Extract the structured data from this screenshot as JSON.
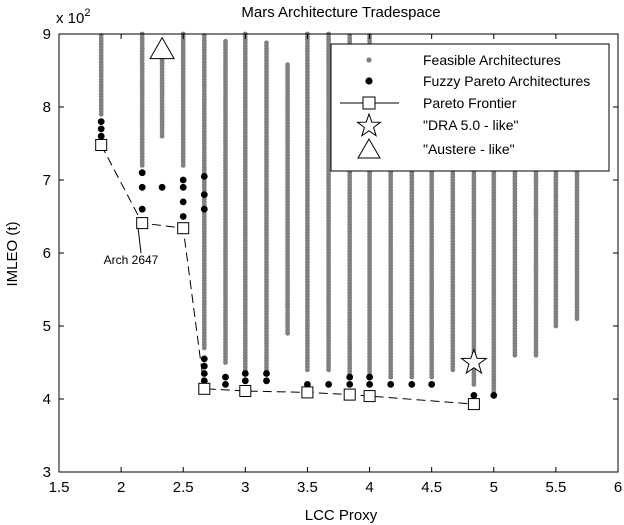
{
  "chart_data": {
    "type": "scatter",
    "title": "Mars Architecture Tradespace",
    "xlabel": "LCC Proxy",
    "ylabel": "IMLEO (t)",
    "y_multiplier_label": "x 10",
    "y_multiplier_exponent": "2",
    "xlim": [
      1.5,
      6
    ],
    "ylim": [
      3,
      9
    ],
    "xticks": [
      1.5,
      2,
      2.5,
      3,
      3.5,
      4,
      4.5,
      5,
      5.5,
      6
    ],
    "xtick_labels": [
      "1.5",
      "2",
      "2.5",
      "3",
      "3.5",
      "4",
      "4.5",
      "5",
      "5.5",
      "6"
    ],
    "yticks": [
      3,
      4,
      5,
      6,
      7,
      8,
      9
    ],
    "ytick_labels": [
      "3",
      "4",
      "5",
      "6",
      "7",
      "8",
      "9"
    ],
    "grid": false,
    "legend_position": "top-right",
    "colors": {
      "feasible": "#808080",
      "fuzzy": "#000000",
      "frontier": "#000000"
    },
    "feasible_columns": [
      {
        "x": 1.84,
        "ymin": 7.9,
        "ymax": 9.0
      },
      {
        "x": 2.17,
        "ymin": 7.2,
        "ymax": 9.0
      },
      {
        "x": 2.33,
        "ymin": 7.6,
        "ymax": 8.7
      },
      {
        "x": 2.5,
        "ymin": 7.2,
        "ymax": 9.0
      },
      {
        "x": 2.67,
        "ymin": 4.7,
        "ymax": 9.0
      },
      {
        "x": 2.84,
        "ymin": 4.5,
        "ymax": 8.9
      },
      {
        "x": 3.0,
        "ymin": 4.4,
        "ymax": 9.0
      },
      {
        "x": 3.17,
        "ymin": 4.4,
        "ymax": 8.9
      },
      {
        "x": 3.34,
        "ymin": 4.9,
        "ymax": 8.6
      },
      {
        "x": 3.5,
        "ymin": 4.4,
        "ymax": 9.0
      },
      {
        "x": 3.67,
        "ymin": 4.4,
        "ymax": 9.0
      },
      {
        "x": 3.84,
        "ymin": 4.3,
        "ymax": 9.0
      },
      {
        "x": 4.0,
        "ymin": 4.3,
        "ymax": 9.0
      },
      {
        "x": 4.17,
        "ymin": 4.3,
        "ymax": 8.0
      },
      {
        "x": 4.34,
        "ymin": 4.3,
        "ymax": 8.0
      },
      {
        "x": 4.5,
        "ymin": 4.3,
        "ymax": 8.0
      },
      {
        "x": 4.67,
        "ymin": 4.4,
        "ymax": 8.0
      },
      {
        "x": 4.84,
        "ymin": 4.2,
        "ymax": 8.0
      },
      {
        "x": 5.0,
        "ymin": 4.1,
        "ymax": 8.0
      },
      {
        "x": 5.17,
        "ymin": 4.6,
        "ymax": 8.0
      },
      {
        "x": 5.34,
        "ymin": 4.6,
        "ymax": 8.0
      },
      {
        "x": 5.5,
        "ymin": 5.0,
        "ymax": 8.0
      },
      {
        "x": 5.67,
        "ymin": 5.1,
        "ymax": 8.0
      }
    ],
    "feasible_extra": [
      {
        "x": 3.34,
        "y": 5.3
      },
      {
        "x": 3.5,
        "y": 5.0
      },
      {
        "x": 4.17,
        "y": 4.3
      }
    ],
    "fuzzy_pareto": [
      {
        "x": 1.84,
        "y": 7.5
      },
      {
        "x": 1.84,
        "y": 7.6
      },
      {
        "x": 1.84,
        "y": 7.7
      },
      {
        "x": 1.84,
        "y": 7.8
      },
      {
        "x": 2.17,
        "y": 6.6
      },
      {
        "x": 2.17,
        "y": 6.9
      },
      {
        "x": 2.17,
        "y": 7.1
      },
      {
        "x": 2.33,
        "y": 6.9
      },
      {
        "x": 2.5,
        "y": 6.5
      },
      {
        "x": 2.5,
        "y": 6.7
      },
      {
        "x": 2.5,
        "y": 6.9
      },
      {
        "x": 2.5,
        "y": 7.0
      },
      {
        "x": 2.67,
        "y": 6.6
      },
      {
        "x": 2.67,
        "y": 6.8
      },
      {
        "x": 2.67,
        "y": 7.05
      },
      {
        "x": 2.67,
        "y": 4.25
      },
      {
        "x": 2.67,
        "y": 4.35
      },
      {
        "x": 2.67,
        "y": 4.45
      },
      {
        "x": 2.67,
        "y": 4.55
      },
      {
        "x": 2.84,
        "y": 4.2
      },
      {
        "x": 2.84,
        "y": 4.3
      },
      {
        "x": 3.0,
        "y": 4.25
      },
      {
        "x": 3.0,
        "y": 4.35
      },
      {
        "x": 3.17,
        "y": 4.25
      },
      {
        "x": 3.17,
        "y": 4.35
      },
      {
        "x": 3.5,
        "y": 4.2
      },
      {
        "x": 3.67,
        "y": 4.2
      },
      {
        "x": 3.84,
        "y": 4.2
      },
      {
        "x": 3.84,
        "y": 4.3
      },
      {
        "x": 4.0,
        "y": 4.2
      },
      {
        "x": 4.0,
        "y": 4.3
      },
      {
        "x": 4.17,
        "y": 4.2
      },
      {
        "x": 4.34,
        "y": 4.2
      },
      {
        "x": 4.5,
        "y": 4.2
      },
      {
        "x": 4.84,
        "y": 4.05
      },
      {
        "x": 5.0,
        "y": 4.05
      }
    ],
    "pareto_frontier": {
      "x": [
        1.84,
        2.17,
        2.5,
        2.67,
        3.0,
        3.5,
        3.84,
        4.0,
        4.84
      ],
      "y": [
        7.48,
        6.41,
        6.34,
        4.14,
        4.11,
        4.09,
        4.06,
        4.04,
        3.93
      ]
    },
    "dra_like": {
      "x": 4.84,
      "y": 4.5
    },
    "austere_like": {
      "x": 2.33,
      "y": 8.8
    },
    "legend_entries": {
      "feasible": "Feasible Architectures",
      "fuzzy": "Fuzzy Pareto Architectures",
      "frontier": "Pareto Frontier",
      "dra": "\"DRA 5.0 - like\"",
      "austere": "\"Austere - like\""
    },
    "annotation": {
      "text": "Arch 2647",
      "target_x": 2.17,
      "target_y": 6.41,
      "text_x": 2.08,
      "text_y": 5.85
    }
  }
}
